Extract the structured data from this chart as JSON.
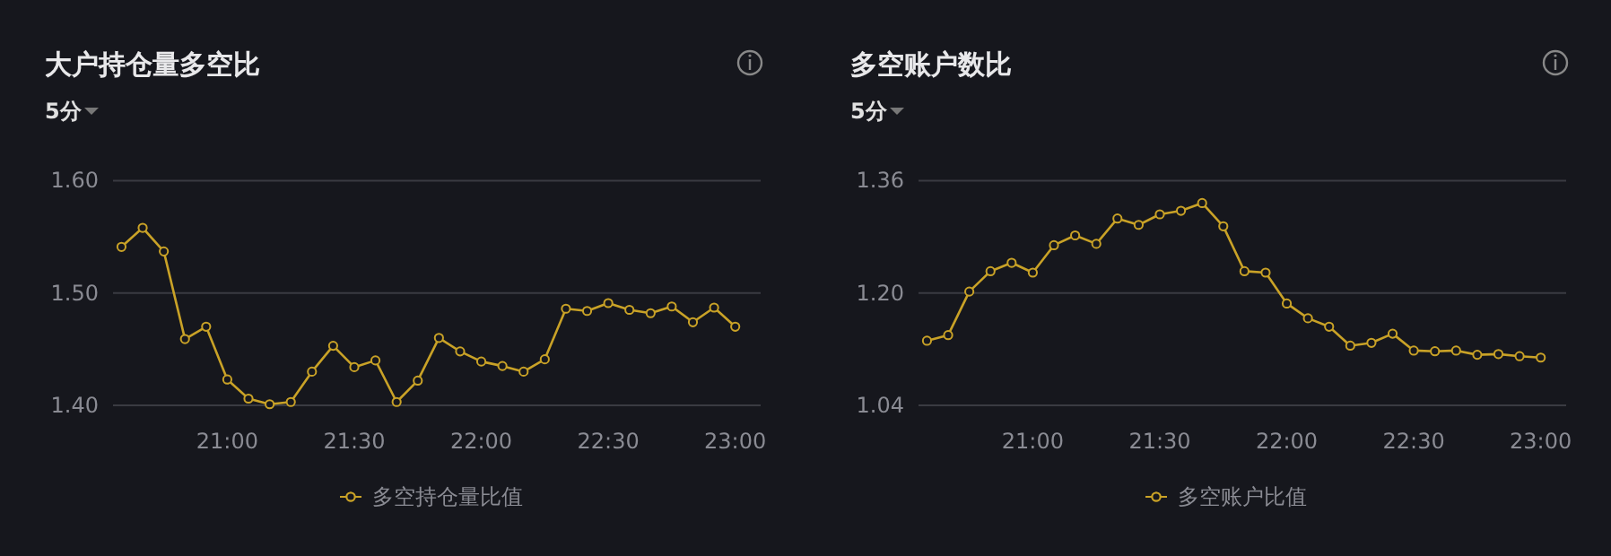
{
  "chart_data": [
    {
      "type": "line",
      "title": "大户持仓量多空比",
      "subtitle": "5分",
      "x": [
        20.5833,
        20.6667,
        20.75,
        20.8333,
        20.9167,
        21.0,
        21.0833,
        21.1667,
        21.25,
        21.3333,
        21.4167,
        21.5,
        21.5833,
        21.6667,
        21.75,
        21.8333,
        21.9167,
        22.0,
        22.0833,
        22.1667,
        22.25,
        22.3333,
        22.4167,
        22.5,
        22.5833,
        22.6667,
        22.75,
        22.8333,
        22.9167,
        23.0
      ],
      "series": [
        {
          "name": "多空持仓量比值",
          "color": "#c9a227",
          "values": [
            1.541,
            1.558,
            1.537,
            1.459,
            1.47,
            1.423,
            1.406,
            1.401,
            1.403,
            1.43,
            1.453,
            1.434,
            1.44,
            1.403,
            1.422,
            1.46,
            1.448,
            1.439,
            1.435,
            1.43,
            1.441,
            1.486,
            1.484,
            1.491,
            1.485,
            1.482,
            1.488,
            1.474,
            1.487,
            1.47
          ]
        }
      ],
      "xlim": [
        20.55,
        23.1
      ],
      "xticks": [
        {
          "value": 21,
          "label": "21:00"
        },
        {
          "value": 21.5,
          "label": "21:30"
        },
        {
          "value": 22,
          "label": "22:00"
        },
        {
          "value": 22.5,
          "label": "22:30"
        },
        {
          "value": 23,
          "label": "23:00"
        }
      ],
      "ylim": [
        1.4,
        1.6
      ],
      "yticks": [
        {
          "value": 1.4,
          "label": "1.40"
        },
        {
          "value": 1.5,
          "label": "1.50"
        },
        {
          "value": 1.6,
          "label": "1.60"
        }
      ],
      "grid": "y",
      "legend": "bottom",
      "marker": "circle"
    },
    {
      "type": "line",
      "title": "多空账户数比",
      "subtitle": "5分",
      "x": [
        20.5833,
        20.6667,
        20.75,
        20.8333,
        20.9167,
        21.0,
        21.0833,
        21.1667,
        21.25,
        21.3333,
        21.4167,
        21.5,
        21.5833,
        21.6667,
        21.75,
        21.8333,
        21.9167,
        22.0,
        22.0833,
        22.1667,
        22.25,
        22.3333,
        22.4167,
        22.5,
        22.5833,
        22.6667,
        22.75,
        22.8333,
        22.9167,
        23.0
      ],
      "series": [
        {
          "name": "多空账户比值",
          "color": "#c9a227",
          "values": [
            1.132,
            1.14,
            1.202,
            1.231,
            1.243,
            1.229,
            1.268,
            1.282,
            1.27,
            1.306,
            1.297,
            1.312,
            1.317,
            1.328,
            1.295,
            1.231,
            1.229,
            1.185,
            1.164,
            1.152,
            1.125,
            1.129,
            1.142,
            1.118,
            1.117,
            1.118,
            1.112,
            1.113,
            1.11,
            1.108
          ]
        }
      ],
      "xlim": [
        20.55,
        23.1
      ],
      "xticks": [
        {
          "value": 21,
          "label": "21:00"
        },
        {
          "value": 21.5,
          "label": "21:30"
        },
        {
          "value": 22,
          "label": "22:00"
        },
        {
          "value": 22.5,
          "label": "22:30"
        },
        {
          "value": 23,
          "label": "23:00"
        }
      ],
      "ylim": [
        1.04,
        1.36
      ],
      "yticks": [
        {
          "value": 1.04,
          "label": "1.04"
        },
        {
          "value": 1.2,
          "label": "1.20"
        },
        {
          "value": 1.36,
          "label": "1.36"
        }
      ],
      "grid": "y",
      "legend": "bottom",
      "marker": "circle"
    }
  ]
}
